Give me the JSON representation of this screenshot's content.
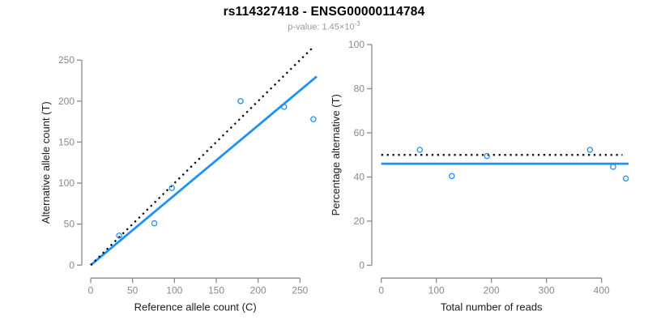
{
  "header": {
    "title": "rs114327418 - ENSG00000114784",
    "p_value_prefix": "p-value: ",
    "p_value_base": "1.45×10",
    "p_value_exponent": "-3"
  },
  "colors": {
    "accent_blue": "#1E90FF",
    "dotted_black": "#000000",
    "axis_gray": "#8a8a8a",
    "tick_label_gray": "#8a8a8a",
    "axis_label_dark": "#1c1c1c",
    "background": "#ffffff"
  },
  "chart_data": [
    {
      "type": "scatter",
      "name": "allele-counts-plot",
      "title": "",
      "xlabel": "Reference allele count (C)",
      "ylabel": "Alternative allele count (T)",
      "xlim": [
        0,
        270
      ],
      "ylim": [
        0,
        266
      ],
      "xticks": [
        0,
        50,
        100,
        150,
        200,
        250
      ],
      "yticks": [
        0,
        50,
        100,
        150,
        200,
        250
      ],
      "grid": false,
      "legend": "none",
      "points": [
        [
          34,
          36
        ],
        [
          76,
          51
        ],
        [
          97,
          94
        ],
        [
          179,
          200
        ],
        [
          231,
          193
        ],
        [
          266,
          178
        ]
      ],
      "lines": [
        {
          "name": "regression-fit-line",
          "style": "solid",
          "color_key": "accent_blue",
          "x": [
            0,
            270
          ],
          "y": [
            0,
            230
          ]
        },
        {
          "name": "identity-null-line",
          "style": "dotted",
          "color_key": "dotted_black",
          "x": [
            0,
            266
          ],
          "y": [
            0,
            266
          ]
        }
      ]
    },
    {
      "type": "scatter",
      "name": "percentage-vs-reads-plot",
      "title": "",
      "xlabel": "Total number of reads",
      "ylabel": "Percentage alternative (T)",
      "xlim": [
        0,
        449
      ],
      "ylim": [
        0,
        100
      ],
      "xticks": [
        0,
        100,
        200,
        300,
        400
      ],
      "yticks": [
        0,
        20,
        40,
        60,
        80,
        100
      ],
      "grid": false,
      "legend": "none",
      "points": [
        [
          70,
          52.3
        ],
        [
          128,
          40.4
        ],
        [
          192,
          49.5
        ],
        [
          379,
          52.3
        ],
        [
          421,
          44.6
        ],
        [
          444,
          39.3
        ]
      ],
      "lines": [
        {
          "name": "fitted-percentage-line",
          "style": "solid",
          "color_key": "accent_blue",
          "x": [
            0,
            449
          ],
          "y": [
            46,
            46
          ]
        },
        {
          "name": "null-50-percent-line",
          "style": "dotted",
          "color_key": "dotted_black",
          "x": [
            0,
            438
          ],
          "y": [
            50,
            50
          ]
        }
      ]
    }
  ]
}
